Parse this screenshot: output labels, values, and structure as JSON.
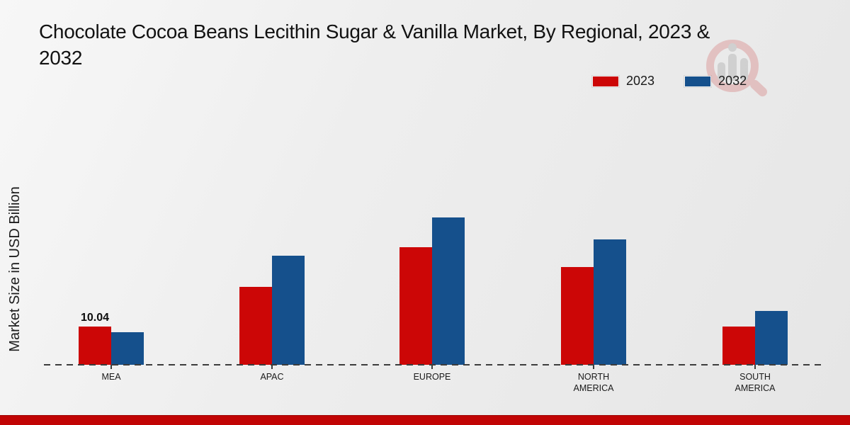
{
  "title": {
    "line1": "Chocolate Cocoa Beans Lecithin Sugar & Vanilla Market, By Regional, 2023 &",
    "line2": "2032"
  },
  "y_axis_label": "Market Size in USD Billion",
  "chart_data": {
    "type": "bar",
    "categories": [
      "MEA",
      "APAC",
      "EUROPE",
      "NORTH AMERICA",
      "SOUTH AMERICA"
    ],
    "series": [
      {
        "name": "2023",
        "color": "#cc0606",
        "values": [
          10.04,
          20.4,
          30.9,
          25.7,
          10.0
        ]
      },
      {
        "name": "2032",
        "color": "#15508c",
        "values": [
          8.5,
          28.6,
          38.7,
          32.9,
          14.1
        ]
      }
    ],
    "data_labels": [
      {
        "category": "MEA",
        "series": "2023",
        "text": "10.04"
      }
    ],
    "title": "Chocolate Cocoa Beans Lecithin Sugar & Vanilla Market, By Regional, 2023 & 2032",
    "xlabel": "",
    "ylabel": "Market Size in USD Billion",
    "ylim": [
      0,
      45
    ],
    "grid": false,
    "baseline_style": "dashed",
    "legend_position": "top-right"
  },
  "colors": {
    "series_2023": "#cc0606",
    "series_2032": "#15508c",
    "footer_bar": "#c10404",
    "background": "#ececec"
  },
  "watermark": {
    "icon": "magnifier-chart-logo"
  }
}
